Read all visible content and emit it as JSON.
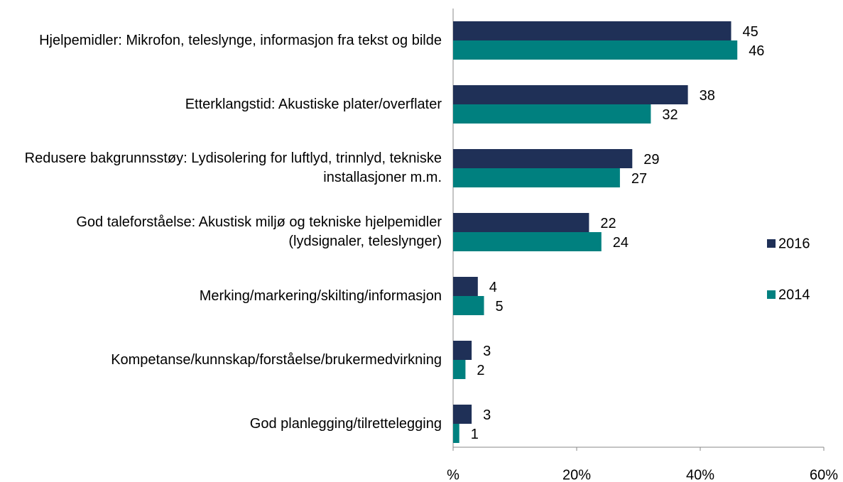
{
  "chart_data": {
    "type": "barh",
    "categories": [
      "Hjelpemidler: Mikrofon, teleslynge, informasjon fra tekst og bilde",
      "Etterklangstid: Akustiske plater/overflater",
      "Redusere bakgrunnsstøy: Lydisolering for luftlyd, trinnlyd, tekniske installasjoner m.m.",
      "God taleforståelse: Akustisk miljø og tekniske hjelpemidler (lydsignaler, teleslynger)",
      "Merking/markering/skilting/informasjon",
      "Kompetanse/kunnskap/forståelse/brukermedvirkning",
      "God planlegging/tilrettelegging"
    ],
    "series": [
      {
        "name": "2016",
        "color": "#1f3057",
        "values": [
          45,
          38,
          29,
          22,
          4,
          3,
          3
        ]
      },
      {
        "name": "2014",
        "color": "#00807f",
        "values": [
          46,
          32,
          27,
          24,
          5,
          2,
          1
        ]
      }
    ],
    "xlim": [
      0,
      60
    ],
    "xticks": [
      {
        "value": 0,
        "label": "%"
      },
      {
        "value": 20,
        "label": "20%"
      },
      {
        "value": 40,
        "label": "40%"
      },
      {
        "value": 60,
        "label": "60%"
      }
    ],
    "legend": "right"
  }
}
